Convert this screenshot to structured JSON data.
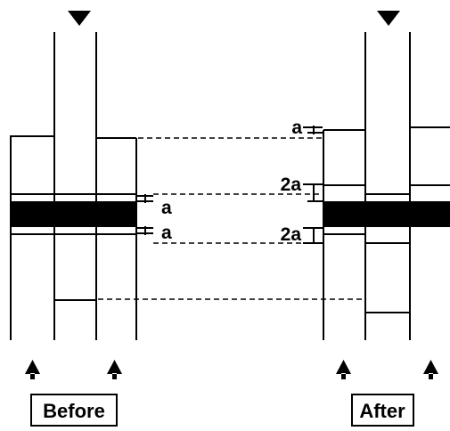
{
  "labels": {
    "before": "Before",
    "after": "After",
    "before_top_gap": "a",
    "before_bottom_gap": "a",
    "after_top": "a",
    "after_upper_gap": "2a",
    "after_lower_gap": "2a"
  }
}
